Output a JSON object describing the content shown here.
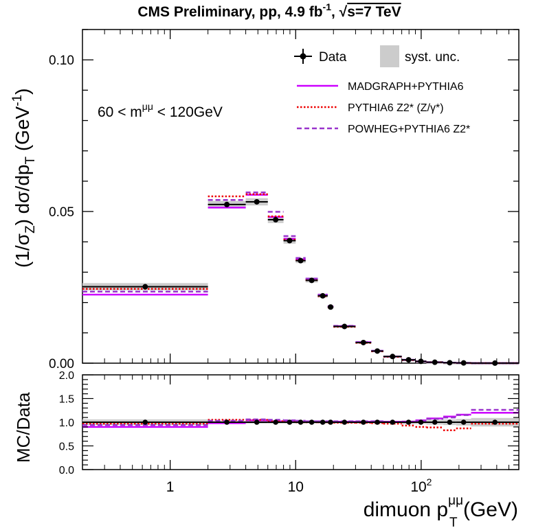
{
  "colors": {
    "madgraph": "#cc00ff",
    "pythia": "#ee0000",
    "powheg": "#9933cc",
    "data": "#000000",
    "syst": "#cccccc"
  },
  "chart_data": {
    "type": "histogram",
    "title": {
      "main": "CMS Preliminary, pp, 4.9 fb",
      "sup": "-1",
      "sep": ", ",
      "sqrt": "√",
      "s_rest": "s=7 TeV"
    },
    "ylabel_top": {
      "p1": "(1/σ",
      "sub_z": "Z",
      "p2": ") dσ/dp",
      "sub_t": "T",
      "p3": " (GeV",
      "sup": "-1",
      "p4": ")"
    },
    "ylabel_ratio": "MC/Data",
    "xlabel": {
      "p1": "dimuon p",
      "sup": "μμ",
      "sub": "T",
      "p2": " (GeV)"
    },
    "mass_window": {
      "p1": "60 < m",
      "sup": "μμ",
      "p2": " < 120GeV"
    },
    "x_scale": "log",
    "xlim": [
      0.2,
      600
    ],
    "ylim_top": [
      0,
      0.11
    ],
    "ylim_ratio": [
      0,
      2
    ],
    "xticks": [
      {
        "value": 1,
        "label": "1"
      },
      {
        "value": 10,
        "label": "10"
      },
      {
        "value": 100,
        "base": "10",
        "exp": "2"
      }
    ],
    "yticks_top": [
      {
        "value": 0.0,
        "label": "0.00"
      },
      {
        "value": 0.05,
        "label": "0.05"
      },
      {
        "value": 0.1,
        "label": "0.10"
      }
    ],
    "yticks_ratio": [
      {
        "value": 0.0,
        "label": "0.0"
      },
      {
        "value": 0.5,
        "label": "0.5"
      },
      {
        "value": 1.0,
        "label": "1.0"
      },
      {
        "value": 1.5,
        "label": "1.5"
      },
      {
        "value": 2.0,
        "label": "2.0"
      }
    ],
    "legend": {
      "data": "Data",
      "syst": "syst. unc.",
      "madgraph": "MADGRAPH+PYTHIA6",
      "pythia": {
        "p1": "PYTHIA6 Z2* (Z/",
        "gamma": "γ",
        "p2": "*)"
      },
      "powheg": "POWHEG+PYTHIA6 Z2*"
    },
    "bins": [
      {
        "low": 0.2,
        "high": 2,
        "data": 0.0252,
        "syst": 0.0012,
        "madgraph": 0.0226,
        "pythia": 0.0245,
        "powheg": 0.0236
      },
      {
        "low": 2,
        "high": 4,
        "data": 0.0523,
        "syst": 0.0012,
        "madgraph": 0.0513,
        "pythia": 0.055,
        "powheg": 0.0538
      },
      {
        "low": 4,
        "high": 6,
        "data": 0.0532,
        "syst": 0.0012,
        "madgraph": 0.0555,
        "pythia": 0.0557,
        "powheg": 0.0563
      },
      {
        "low": 6,
        "high": 8,
        "data": 0.0473,
        "syst": 0.0011,
        "madgraph": 0.0482,
        "pythia": 0.0484,
        "powheg": 0.0499
      },
      {
        "low": 8,
        "high": 10,
        "data": 0.0404,
        "syst": 0.001,
        "madgraph": 0.041,
        "pythia": 0.0407,
        "powheg": 0.0419
      },
      {
        "low": 10,
        "high": 12,
        "data": 0.0338,
        "syst": 0.0008,
        "madgraph": 0.0342,
        "pythia": 0.0339,
        "powheg": 0.0347
      },
      {
        "low": 12,
        "high": 15,
        "data": 0.0273,
        "syst": 0.0007,
        "madgraph": 0.0276,
        "pythia": 0.0274,
        "powheg": 0.0279
      },
      {
        "low": 15,
        "high": 18,
        "data": 0.0222,
        "syst": 0.0006,
        "madgraph": 0.0224,
        "pythia": 0.0221,
        "powheg": 0.0226
      },
      {
        "low": 18,
        "high": 20,
        "data": 0.0185,
        "syst": 0.0005,
        "madgraph": 0.0187,
        "pythia": 0.0184,
        "powheg": 0.0188
      },
      {
        "low": 20,
        "high": 30,
        "data": 0.0121,
        "syst": 0.0004,
        "madgraph": 0.0122,
        "pythia": 0.012,
        "powheg": 0.0123
      },
      {
        "low": 30,
        "high": 40,
        "data": 0.0068,
        "syst": 0.0002,
        "madgraph": 0.0069,
        "pythia": 0.0067,
        "powheg": 0.007
      },
      {
        "low": 40,
        "high": 50,
        "data": 0.004,
        "syst": 0.0002,
        "madgraph": 0.004,
        "pythia": 0.0039,
        "powheg": 0.0041
      },
      {
        "low": 50,
        "high": 70,
        "data": 0.0022,
        "syst": 0.0001,
        "madgraph": 0.0022,
        "pythia": 0.0021,
        "powheg": 0.0022
      },
      {
        "low": 70,
        "high": 90,
        "data": 0.0011,
        "syst": 0.0001,
        "madgraph": 0.0011,
        "pythia": 0.001,
        "powheg": 0.0011
      },
      {
        "low": 90,
        "high": 110,
        "data": 0.0006,
        "syst": 5e-05,
        "madgraph": 0.0006,
        "pythia": 0.0006,
        "powheg": 0.0006
      },
      {
        "low": 110,
        "high": 150,
        "data": 0.0003,
        "syst": 3e-05,
        "madgraph": 0.0003,
        "pythia": 0.0003,
        "powheg": 0.0003
      },
      {
        "low": 150,
        "high": 190,
        "data": 0.00015,
        "syst": 2e-05,
        "madgraph": 0.00016,
        "pythia": 0.00013,
        "powheg": 0.00016
      },
      {
        "low": 190,
        "high": 250,
        "data": 8e-05,
        "syst": 1e-05,
        "madgraph": 9e-05,
        "pythia": 7e-05,
        "powheg": 9e-05
      },
      {
        "low": 250,
        "high": 600,
        "data": 2e-05,
        "syst": 5e-06,
        "madgraph": 2e-05,
        "pythia": 2e-05,
        "powheg": 2e-05
      }
    ],
    "ratio": [
      {
        "low": 0.2,
        "high": 2,
        "syst": 0.06,
        "madgraph": 0.9,
        "pythia": 0.97,
        "powheg": 0.94
      },
      {
        "low": 2,
        "high": 4,
        "syst": 0.03,
        "madgraph": 0.98,
        "pythia": 1.05,
        "powheg": 1.03
      },
      {
        "low": 4,
        "high": 6,
        "syst": 0.03,
        "madgraph": 1.04,
        "pythia": 1.05,
        "powheg": 1.06
      },
      {
        "low": 6,
        "high": 8,
        "syst": 0.03,
        "madgraph": 1.02,
        "pythia": 1.02,
        "powheg": 1.05
      },
      {
        "low": 8,
        "high": 10,
        "syst": 0.03,
        "madgraph": 1.01,
        "pythia": 1.01,
        "powheg": 1.04
      },
      {
        "low": 10,
        "high": 12,
        "syst": 0.03,
        "madgraph": 1.01,
        "pythia": 1.0,
        "powheg": 1.03
      },
      {
        "low": 12,
        "high": 15,
        "syst": 0.03,
        "madgraph": 1.01,
        "pythia": 1.0,
        "powheg": 1.02
      },
      {
        "low": 15,
        "high": 18,
        "syst": 0.03,
        "madgraph": 1.01,
        "pythia": 1.0,
        "powheg": 1.02
      },
      {
        "low": 18,
        "high": 20,
        "syst": 0.03,
        "madgraph": 1.01,
        "pythia": 0.99,
        "powheg": 1.02
      },
      {
        "low": 20,
        "high": 30,
        "syst": 0.03,
        "madgraph": 1.01,
        "pythia": 0.99,
        "powheg": 1.02
      },
      {
        "low": 30,
        "high": 40,
        "syst": 0.03,
        "madgraph": 1.01,
        "pythia": 0.99,
        "powheg": 1.02
      },
      {
        "low": 40,
        "high": 50,
        "syst": 0.03,
        "madgraph": 1.01,
        "pythia": 0.98,
        "powheg": 1.02
      },
      {
        "low": 50,
        "high": 70,
        "syst": 0.03,
        "madgraph": 1.01,
        "pythia": 0.97,
        "powheg": 1.01
      },
      {
        "low": 70,
        "high": 90,
        "syst": 0.04,
        "madgraph": 1.01,
        "pythia": 0.93,
        "powheg": 1.0
      },
      {
        "low": 90,
        "high": 110,
        "syst": 0.04,
        "madgraph": 1.04,
        "pythia": 0.9,
        "powheg": 1.03
      },
      {
        "low": 110,
        "high": 150,
        "syst": 0.05,
        "madgraph": 1.08,
        "pythia": 0.89,
        "powheg": 1.07
      },
      {
        "low": 150,
        "high": 190,
        "syst": 0.06,
        "madgraph": 1.12,
        "pythia": 0.83,
        "powheg": 1.1
      },
      {
        "low": 190,
        "high": 250,
        "syst": 0.07,
        "madgraph": 1.16,
        "pythia": 0.87,
        "powheg": 1.15
      },
      {
        "low": 250,
        "high": 600,
        "syst": 0.09,
        "madgraph": 1.2,
        "pythia": 0.97,
        "powheg": 1.26
      }
    ]
  }
}
